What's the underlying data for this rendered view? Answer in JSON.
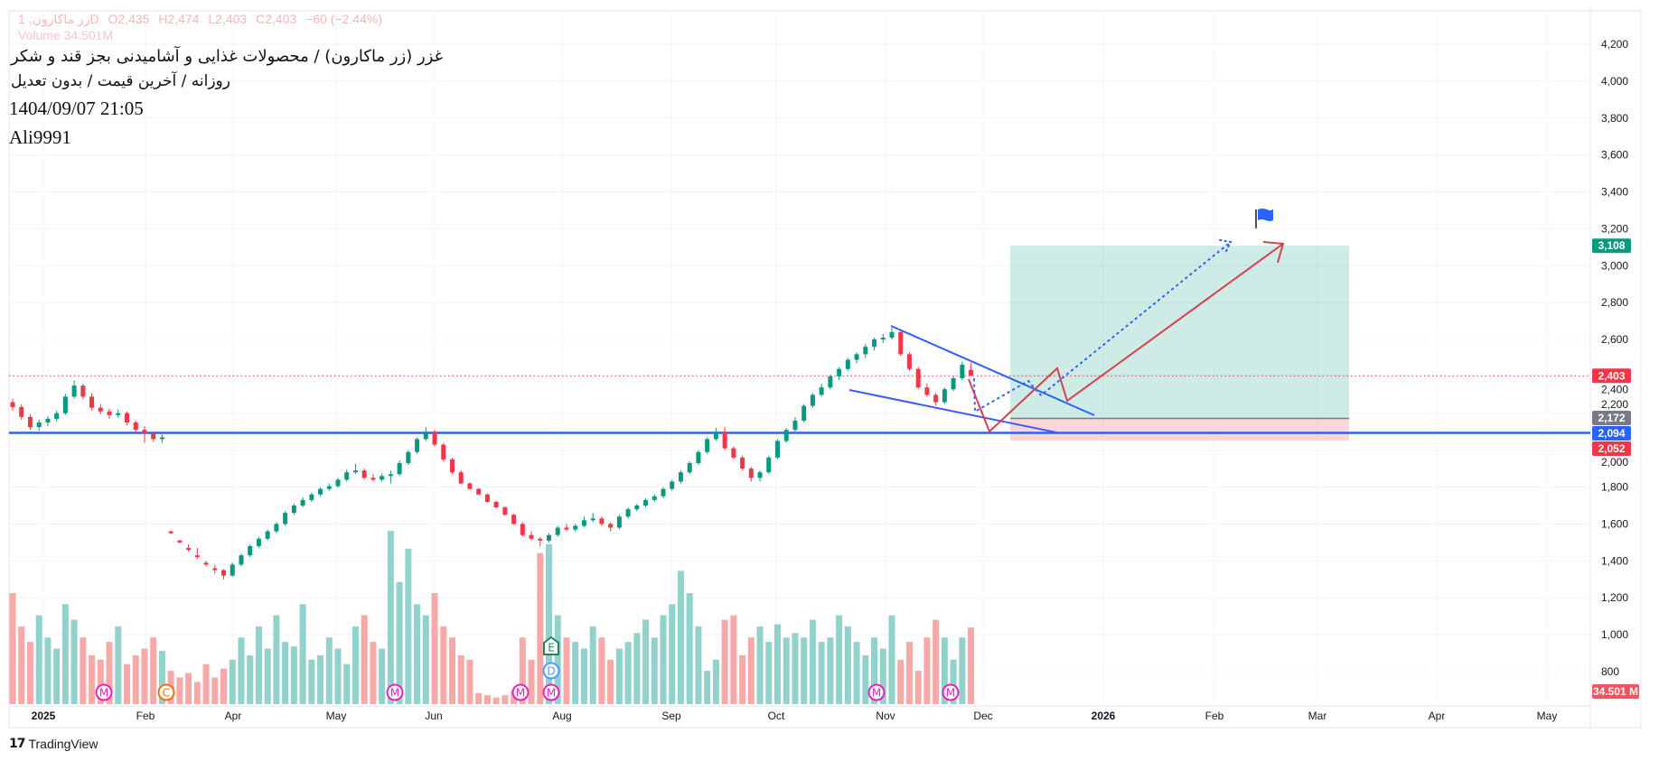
{
  "header": {
    "symbol_legend": "زر ماکارون, 1D",
    "ohlc": {
      "open": "O2,435",
      "high": "H2,474",
      "low": "L2,403",
      "close": "C2,403",
      "change": "−60 (−2.44%)"
    },
    "volume_legend": "Volume 34.501M",
    "title": "غزر (زر ماکارون) / محصولات غذایی و آشامیدنی بجز قند و شکر",
    "subtitle": "روزانه / آخرین قیمت / بدون تعدیل",
    "timestamp": "1404/09/07 21:05",
    "author": "Ali9991"
  },
  "footer": {
    "brand": "TradingView",
    "logo_mark": "17"
  },
  "colors": {
    "up": "#089981",
    "down": "#f23645",
    "support": "#2962ff",
    "projection": "#e0394c",
    "target_zone": "#089981",
    "stop_zone": "#f23645",
    "entry": "#787b86"
  },
  "chart_data": {
    "type": "candlestick",
    "price_axis": {
      "ticks": [
        "4,200",
        "4,000",
        "3,800",
        "3,600",
        "3,400",
        "3,200",
        "3,000",
        "2,800",
        "2,600",
        "2,400",
        "2,200",
        "2,000",
        "1,800",
        "1,600",
        "1,400",
        "1,200",
        "1,000",
        "800"
      ],
      "range": [
        800,
        4200
      ]
    },
    "time_axis": {
      "ticks": [
        "2025",
        "Feb",
        "Apr",
        "May",
        "Jun",
        "Aug",
        "Sep",
        "Oct",
        "Nov",
        "Dec",
        "2026",
        "Feb",
        "Mar",
        "Apr",
        "May"
      ],
      "bold": [
        "2025",
        "2026"
      ]
    },
    "grid": true,
    "candles": [
      [
        2260,
        2280,
        2215,
        2234
      ],
      [
        2234,
        2250,
        2165,
        2180
      ],
      [
        2180,
        2195,
        2110,
        2125
      ],
      [
        2125,
        2165,
        2105,
        2150
      ],
      [
        2150,
        2185,
        2130,
        2170
      ],
      [
        2170,
        2215,
        2155,
        2200
      ],
      [
        2200,
        2305,
        2190,
        2290
      ],
      [
        2290,
        2378,
        2280,
        2350
      ],
      [
        2350,
        2360,
        2275,
        2290
      ],
      [
        2290,
        2310,
        2215,
        2230
      ],
      [
        2230,
        2250,
        2195,
        2210
      ],
      [
        2210,
        2225,
        2170,
        2190
      ],
      [
        2190,
        2220,
        2175,
        2200
      ],
      [
        2200,
        2210,
        2135,
        2150
      ],
      [
        2150,
        2160,
        2095,
        2110
      ],
      [
        2110,
        2130,
        2040,
        2090
      ],
      [
        2090,
        2100,
        2045,
        2060
      ],
      [
        2060,
        2085,
        2040,
        2070
      ],
      [
        1560,
        1565,
        1545,
        1550
      ],
      [
        1510,
        1515,
        1495,
        1500
      ],
      [
        1470,
        1490,
        1450,
        1460
      ],
      [
        1430,
        1470,
        1410,
        1420
      ],
      [
        1390,
        1400,
        1370,
        1380
      ],
      [
        1360,
        1380,
        1330,
        1350
      ],
      [
        1350,
        1355,
        1300,
        1320
      ],
      [
        1320,
        1390,
        1315,
        1380
      ],
      [
        1380,
        1440,
        1370,
        1430
      ],
      [
        1430,
        1490,
        1420,
        1480
      ],
      [
        1480,
        1530,
        1470,
        1520
      ],
      [
        1520,
        1570,
        1510,
        1560
      ],
      [
        1560,
        1610,
        1550,
        1600
      ],
      [
        1600,
        1670,
        1590,
        1660
      ],
      [
        1660,
        1710,
        1650,
        1700
      ],
      [
        1700,
        1745,
        1690,
        1730
      ],
      [
        1730,
        1770,
        1720,
        1760
      ],
      [
        1760,
        1800,
        1750,
        1790
      ],
      [
        1790,
        1820,
        1780,
        1805
      ],
      [
        1805,
        1850,
        1795,
        1840
      ],
      [
        1840,
        1895,
        1830,
        1880
      ],
      [
        1880,
        1925,
        1870,
        1890
      ],
      [
        1890,
        1900,
        1840,
        1850
      ],
      [
        1850,
        1870,
        1830,
        1840
      ],
      [
        1840,
        1875,
        1830,
        1860
      ],
      [
        1860,
        1890,
        1820,
        1870
      ],
      [
        1870,
        1945,
        1860,
        1930
      ],
      [
        1930,
        2000,
        1920,
        1990
      ],
      [
        1990,
        2070,
        1980,
        2060
      ],
      [
        2060,
        2125,
        2050,
        2100
      ],
      [
        2100,
        2110,
        2020,
        2030
      ],
      [
        2030,
        2040,
        1940,
        1950
      ],
      [
        1950,
        1960,
        1870,
        1880
      ],
      [
        1880,
        1890,
        1815,
        1820
      ],
      [
        1820,
        1825,
        1785,
        1790
      ],
      [
        1790,
        1795,
        1755,
        1760
      ],
      [
        1760,
        1765,
        1715,
        1720
      ],
      [
        1720,
        1725,
        1685,
        1690
      ],
      [
        1690,
        1695,
        1645,
        1650
      ],
      [
        1650,
        1655,
        1595,
        1600
      ],
      [
        1600,
        1610,
        1530,
        1540
      ],
      [
        1540,
        1560,
        1510,
        1520
      ],
      [
        1520,
        1530,
        1480,
        1510
      ],
      [
        1510,
        1550,
        1500,
        1540
      ],
      [
        1540,
        1590,
        1530,
        1580
      ],
      [
        1580,
        1600,
        1560,
        1570
      ],
      [
        1570,
        1600,
        1560,
        1590
      ],
      [
        1590,
        1640,
        1580,
        1620
      ],
      [
        1620,
        1660,
        1610,
        1630
      ],
      [
        1630,
        1640,
        1590,
        1600
      ],
      [
        1600,
        1610,
        1560,
        1580
      ],
      [
        1580,
        1650,
        1570,
        1640
      ],
      [
        1640,
        1690,
        1630,
        1680
      ],
      [
        1680,
        1710,
        1670,
        1700
      ],
      [
        1700,
        1740,
        1690,
        1730
      ],
      [
        1730,
        1760,
        1720,
        1750
      ],
      [
        1750,
        1800,
        1740,
        1790
      ],
      [
        1790,
        1840,
        1780,
        1830
      ],
      [
        1830,
        1890,
        1820,
        1880
      ],
      [
        1880,
        1940,
        1870,
        1930
      ],
      [
        1930,
        2000,
        1920,
        1990
      ],
      [
        1990,
        2070,
        1980,
        2060
      ],
      [
        2060,
        2120,
        2050,
        2100
      ],
      [
        2100,
        2125,
        2000,
        2010
      ],
      [
        2010,
        2020,
        1950,
        1960
      ],
      [
        1960,
        1970,
        1890,
        1900
      ],
      [
        1900,
        1910,
        1830,
        1850
      ],
      [
        1850,
        1890,
        1830,
        1880
      ],
      [
        1880,
        1970,
        1870,
        1960
      ],
      [
        1960,
        2060,
        1950,
        2050
      ],
      [
        2050,
        2120,
        2040,
        2110
      ],
      [
        2110,
        2180,
        2100,
        2160
      ],
      [
        2160,
        2250,
        2150,
        2240
      ],
      [
        2240,
        2310,
        2230,
        2300
      ],
      [
        2300,
        2360,
        2290,
        2340
      ],
      [
        2340,
        2410,
        2330,
        2400
      ],
      [
        2400,
        2450,
        2380,
        2440
      ],
      [
        2440,
        2500,
        2430,
        2490
      ],
      [
        2490,
        2530,
        2470,
        2520
      ],
      [
        2520,
        2575,
        2500,
        2560
      ],
      [
        2560,
        2610,
        2540,
        2600
      ],
      [
        2600,
        2630,
        2580,
        2610
      ],
      [
        2610,
        2664,
        2600,
        2640
      ],
      [
        2640,
        2650,
        2510,
        2520
      ],
      [
        2520,
        2530,
        2430,
        2440
      ],
      [
        2440,
        2450,
        2330,
        2340
      ],
      [
        2340,
        2360,
        2290,
        2300
      ],
      [
        2300,
        2310,
        2240,
        2260
      ],
      [
        2260,
        2340,
        2250,
        2330
      ],
      [
        2330,
        2400,
        2320,
        2390
      ],
      [
        2390,
        2480,
        2380,
        2463
      ],
      [
        2435,
        2474,
        2403,
        2403
      ]
    ],
    "volume_millions": [
      50,
      35,
      28,
      40,
      30,
      25,
      45,
      38,
      30,
      22,
      20,
      28,
      35,
      18,
      22,
      25,
      30,
      24,
      15,
      12,
      14,
      10,
      18,
      12,
      16,
      20,
      30,
      22,
      35,
      25,
      40,
      28,
      26,
      45,
      20,
      22,
      30,
      25,
      18,
      35,
      40,
      28,
      25,
      78,
      55,
      70,
      45,
      40,
      50,
      35,
      30,
      22,
      20,
      5,
      4,
      3,
      4,
      6,
      30,
      20,
      68,
      72,
      40,
      30,
      28,
      25,
      35,
      30,
      20,
      25,
      28,
      32,
      38,
      30,
      40,
      45,
      60,
      50,
      35,
      15,
      20,
      38,
      40,
      22,
      30,
      35,
      28,
      36,
      30,
      32,
      30,
      38,
      28,
      30,
      40,
      35,
      28,
      22,
      30,
      25,
      40,
      20,
      28,
      15,
      30,
      38,
      30,
      20,
      30,
      34.501
    ],
    "last_price": 2403,
    "price_badges": [
      {
        "value": 3108,
        "label": "3,108",
        "color": "#089981"
      },
      {
        "value": 2403,
        "label": "2,403",
        "color": "#f23645"
      },
      {
        "value": 2172,
        "label": "2,172",
        "color": "#787b86"
      },
      {
        "value": 2094,
        "label": "2,094",
        "color": "#2962ff"
      },
      {
        "value": 2052,
        "label": "2,052",
        "color": "#f23645"
      }
    ],
    "volume_badge": {
      "label": "34.501 M",
      "color": "#f7525f"
    },
    "support_level": 2094,
    "position": {
      "target": 3108,
      "entry": 2172,
      "stop": 2052
    },
    "event_markers": [
      {
        "type": "M",
        "color": "#e91ec0"
      },
      {
        "type": "C",
        "color": "#ff6d00"
      },
      {
        "type": "M",
        "color": "#e91ec0"
      },
      {
        "type": "M",
        "color": "#e91ec0"
      },
      {
        "type": "M",
        "color": "#e91ec0"
      },
      {
        "type": "E",
        "color": "#1b8a5a"
      },
      {
        "type": "D",
        "color": "#4c9bff"
      },
      {
        "type": "M",
        "color": "#e91ec0"
      },
      {
        "type": "M",
        "color": "#e91ec0"
      }
    ]
  }
}
